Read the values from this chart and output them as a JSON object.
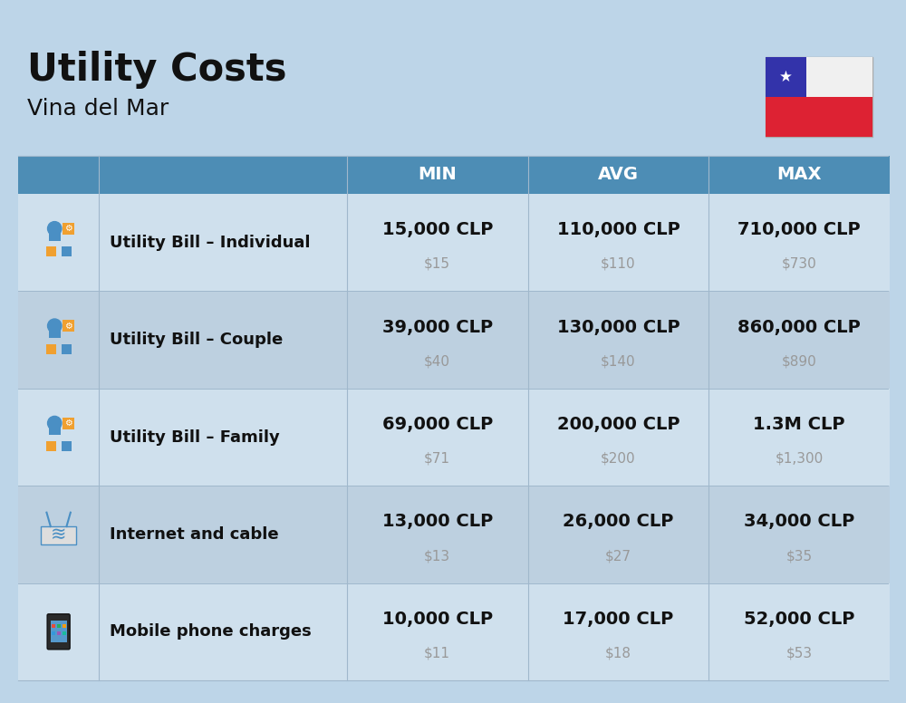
{
  "title": "Utility Costs",
  "subtitle": "Vina del Mar",
  "bg_color": "#bdd5e8",
  "header_color": "#4d8db5",
  "row_colors": [
    "#cfe0ed",
    "#bdd0e0"
  ],
  "header_text_color": "#ffffff",
  "label_text_color": "#111111",
  "value_text_color": "#111111",
  "subvalue_text_color": "#999999",
  "col_headers": [
    "MIN",
    "AVG",
    "MAX"
  ],
  "rows": [
    {
      "label": "Utility Bill – Individual",
      "min_clp": "15,000 CLP",
      "min_usd": "$15",
      "avg_clp": "110,000 CLP",
      "avg_usd": "$110",
      "max_clp": "710,000 CLP",
      "max_usd": "$730"
    },
    {
      "label": "Utility Bill – Couple",
      "min_clp": "39,000 CLP",
      "min_usd": "$40",
      "avg_clp": "130,000 CLP",
      "avg_usd": "$140",
      "max_clp": "860,000 CLP",
      "max_usd": "$890"
    },
    {
      "label": "Utility Bill – Family",
      "min_clp": "69,000 CLP",
      "min_usd": "$71",
      "avg_clp": "200,000 CLP",
      "avg_usd": "$200",
      "max_clp": "1.3M CLP",
      "max_usd": "$1,300"
    },
    {
      "label": "Internet and cable",
      "min_clp": "13,000 CLP",
      "min_usd": "$13",
      "avg_clp": "26,000 CLP",
      "avg_usd": "$27",
      "max_clp": "34,000 CLP",
      "max_usd": "$35"
    },
    {
      "label": "Mobile phone charges",
      "min_clp": "10,000 CLP",
      "min_usd": "$11",
      "avg_clp": "17,000 CLP",
      "avg_usd": "$18",
      "max_clp": "52,000 CLP",
      "max_usd": "$53"
    }
  ],
  "title_fontsize": 30,
  "subtitle_fontsize": 18,
  "header_fontsize": 14,
  "label_fontsize": 13,
  "value_fontsize": 14,
  "subvalue_fontsize": 11,
  "flag_blue": "#3333aa",
  "flag_red": "#dd2233",
  "flag_white": "#f0f0f0"
}
